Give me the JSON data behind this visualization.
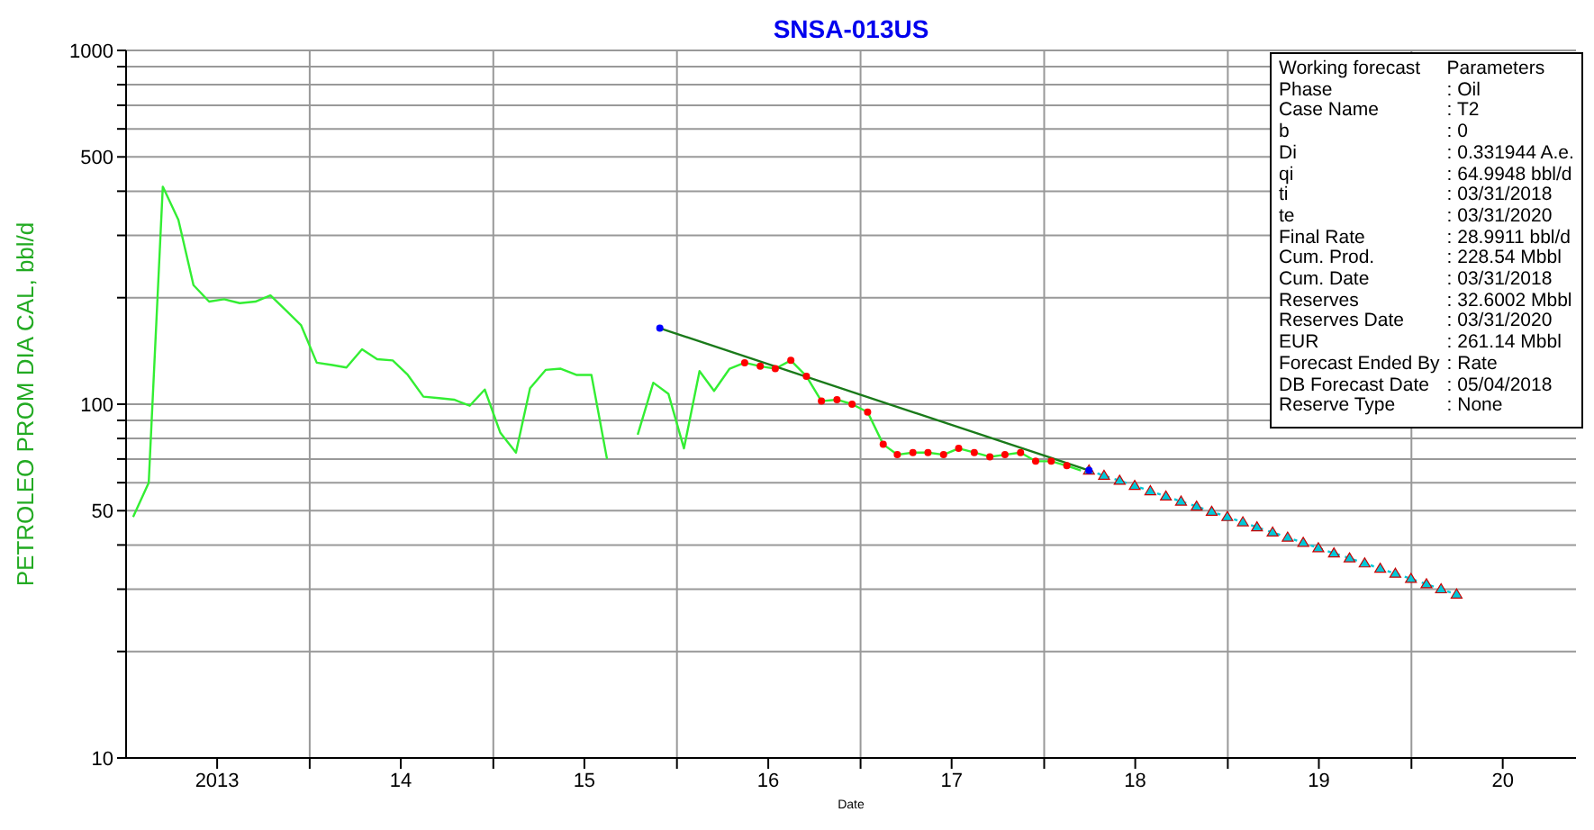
{
  "chart_data": {
    "type": "line",
    "title": "SNSA-013US",
    "xlabel": "Date",
    "ylabel": "PETROLEO PROM DIA CAL, bbl/d",
    "log": "y",
    "grid": true,
    "ylim": [
      10,
      1000
    ],
    "yticks": [
      10,
      {
        "value": 20,
        "label": null
      },
      {
        "value": 30,
        "label": null
      },
      {
        "value": 40,
        "label": null
      },
      50,
      {
        "value": 60,
        "label": null
      },
      {
        "value": 70,
        "label": null
      },
      {
        "value": 80,
        "label": null
      },
      {
        "value": 90,
        "label": null
      },
      100,
      {
        "value": 200,
        "label": null
      },
      {
        "value": 300,
        "label": null
      },
      {
        "value": 400,
        "label": null
      },
      500,
      {
        "value": 600,
        "label": null
      },
      {
        "value": 700,
        "label": null
      },
      {
        "value": 800,
        "label": null
      },
      {
        "value": 900,
        "label": null
      },
      1000
    ],
    "xlim": [
      "2013-01-01",
      "2020-11-24"
    ],
    "xticks": [
      {
        "value": "2013-07-01",
        "label": "2013"
      },
      {
        "value": "2014-01-01",
        "label": null
      },
      {
        "value": "2014-07-01",
        "label": "14"
      },
      {
        "value": "2015-01-01",
        "label": null
      },
      {
        "value": "2015-07-01",
        "label": "15"
      },
      {
        "value": "2016-01-01",
        "label": null
      },
      {
        "value": "2016-07-01",
        "label": "16"
      },
      {
        "value": "2017-01-01",
        "label": null
      },
      {
        "value": "2017-07-01",
        "label": "17"
      },
      {
        "value": "2018-01-01",
        "label": null
      },
      {
        "value": "2018-07-01",
        "label": "18"
      },
      {
        "value": "2019-01-01",
        "label": null
      },
      {
        "value": "2019-07-01",
        "label": "19"
      },
      {
        "value": "2020-01-01",
        "label": null
      },
      {
        "value": "2020-07-01",
        "label": "20"
      }
    ],
    "series": [
      {
        "color": "#33ee33",
        "marker": "none",
        "x": [
          "2013-01-15",
          "2013-02-15",
          "2013-03-15",
          "2013-04-15",
          "2013-05-15",
          "2013-06-15",
          "2013-07-15",
          "2013-08-15",
          "2013-09-15",
          "2013-10-15",
          "2013-11-15",
          "2013-12-15",
          "2014-01-15",
          "2014-02-15",
          "2014-03-15",
          "2014-04-15",
          "2014-05-15",
          "2014-06-15",
          "2014-07-15",
          "2014-08-15",
          "2014-09-15",
          "2014-10-15",
          "2014-11-15",
          "2014-12-15",
          "2015-01-15",
          "2015-02-15",
          "2015-03-15",
          "2015-04-15",
          "2015-05-15",
          "2015-06-15",
          "2015-07-15",
          "2015-08-15",
          "2015-09-15",
          "2015-10-15",
          "2015-11-15",
          "2015-12-15",
          "2016-01-15",
          "2016-02-15",
          "2016-03-15",
          "2016-04-15",
          "2016-05-15",
          "2016-06-15",
          "2016-07-15",
          "2016-08-15",
          "2016-09-15",
          "2016-10-15",
          "2016-11-15",
          "2016-12-15",
          "2017-01-15",
          "2017-02-15",
          "2017-03-15",
          "2017-04-15",
          "2017-05-15",
          "2017-06-15",
          "2017-07-15",
          "2017-08-15",
          "2017-09-15",
          "2017-10-15",
          "2017-11-15",
          "2017-12-15",
          "2018-01-15",
          "2018-02-15",
          "2018-03-15"
        ],
        "values": [
          48,
          60,
          412,
          332,
          217,
          195,
          198,
          193,
          195,
          203,
          184,
          167,
          131,
          129,
          127,
          143,
          134,
          133,
          121,
          105,
          104,
          103,
          99,
          110,
          83,
          73,
          111,
          125,
          126,
          121,
          121,
          70,
          null,
          82,
          115,
          107,
          75,
          124,
          109,
          126,
          131,
          128,
          126,
          133,
          120,
          102,
          103,
          100,
          95,
          77,
          72,
          73,
          73,
          72,
          75,
          73,
          71,
          72,
          73,
          69,
          69,
          67,
          65
        ]
      },
      {
        "type": "scatter",
        "color": "#ff0000",
        "marker": "circle",
        "x": [
          "2016-05-15",
          "2016-06-15",
          "2016-07-15",
          "2016-08-15",
          "2016-09-15",
          "2016-10-15",
          "2016-11-15",
          "2016-12-15",
          "2017-01-15",
          "2017-02-15",
          "2017-03-15",
          "2017-04-15",
          "2017-05-15",
          "2017-06-15",
          "2017-07-15",
          "2017-08-15",
          "2017-09-15",
          "2017-10-15",
          "2017-11-15",
          "2017-12-15",
          "2018-01-15",
          "2018-02-15"
        ],
        "values": [
          131,
          128,
          126,
          133,
          120,
          102,
          103,
          100,
          95,
          77,
          72,
          73,
          73,
          72,
          75,
          73,
          71,
          72,
          73,
          69,
          69,
          67
        ]
      },
      {
        "color": "#1a7a1a",
        "marker": "none",
        "x": [
          "2015-11-28",
          "2018-03-31"
        ],
        "values": [
          164,
          65
        ]
      },
      {
        "color": "#00c8d8",
        "marker": "triangle",
        "line_style": "dotted",
        "x": [
          "2018-03-31",
          "2018-04-30",
          "2018-05-31",
          "2018-06-30",
          "2018-07-31",
          "2018-08-31",
          "2018-09-30",
          "2018-10-31",
          "2018-11-30",
          "2018-12-31",
          "2019-01-31",
          "2019-02-28",
          "2019-03-31",
          "2019-04-30",
          "2019-05-31",
          "2019-06-30",
          "2019-07-31",
          "2019-08-31",
          "2019-09-30",
          "2019-10-31",
          "2019-11-30",
          "2019-12-31",
          "2020-01-31",
          "2020-02-29",
          "2020-03-31"
        ],
        "values": [
          65.0,
          62.8,
          60.8,
          58.8,
          56.8,
          54.9,
          53.1,
          51.4,
          49.7,
          48.0,
          46.4,
          44.9,
          43.4,
          42.0,
          40.6,
          39.2,
          37.9,
          36.7,
          35.5,
          34.3,
          33.2,
          32.1,
          31.0,
          30.0,
          29.0
        ]
      },
      {
        "type": "scatter",
        "color": "#0000ff",
        "marker": "circle",
        "x": [
          "2015-11-28",
          "2018-03-31"
        ],
        "values": [
          164,
          65
        ]
      }
    ],
    "annotations": [
      "Working forecast",
      "Parameters",
      "Phase",
      ": Oil",
      "Case Name",
      ": T2",
      "b",
      ": 0",
      "Di",
      ": 0.331944 A.e.",
      "qi",
      ": 64.9948 bbl/d",
      "ti",
      ": 03/31/2018",
      "te",
      ": 03/31/2020",
      "Final Rate",
      ": 28.9911 bbl/d",
      "Cum. Prod.",
      ": 228.54 Mbbl",
      "Cum. Date",
      ": 03/31/2018",
      "Reserves",
      ": 32.6002 Mbbl",
      "Reserves Date",
      ": 03/31/2020",
      "EUR",
      ": 261.14 Mbbl",
      "Forecast Ended By",
      ": Rate",
      "DB Forecast Date",
      ": 05/04/2018",
      "Reserve Type",
      ": None"
    ]
  }
}
